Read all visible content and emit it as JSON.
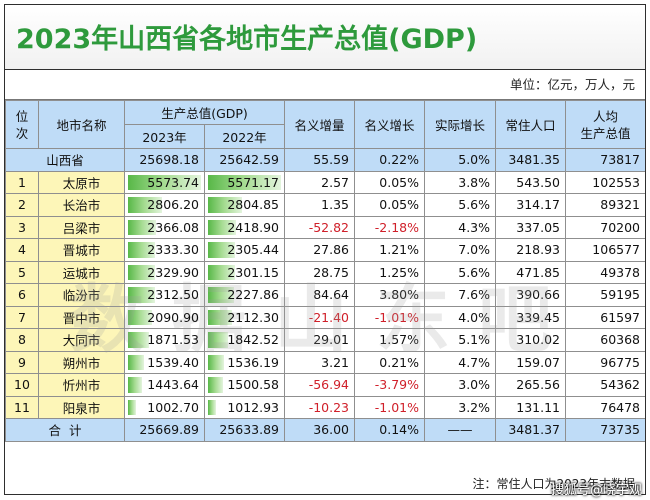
{
  "title": "2023年山西省各地市生产总值(GDP)",
  "unit": "单位：亿元，万人，元",
  "headers": {
    "rank": "位次",
    "city": "地市名称",
    "gdp_group": "生产总值(GDP)",
    "y2023": "2023年",
    "y2022": "2022年",
    "nominal_increase": "名义增量",
    "nominal_growth": "名义增长",
    "real_growth": "实际增长",
    "population": "常住人口",
    "per_capita": "人均\n生产总值"
  },
  "province": {
    "name": "山西省",
    "gdp2023": "25698.18",
    "gdp2022": "25642.59",
    "increase": "55.59",
    "nominal": "0.22%",
    "real": "5.0%",
    "pop": "3481.35",
    "per_capita": "73817"
  },
  "rows": [
    {
      "rank": "1",
      "city": "太原市",
      "gdp2023": "5573.74",
      "gdp2022": "5571.17",
      "increase": "2.57",
      "nominal": "0.05%",
      "real": "3.8%",
      "pop": "543.50",
      "per_capita": "102553",
      "negative": false,
      "frac23": 1.0,
      "frac22": 1.0
    },
    {
      "rank": "2",
      "city": "长治市",
      "gdp2023": "2806.20",
      "gdp2022": "2804.85",
      "increase": "1.35",
      "nominal": "0.05%",
      "real": "5.6%",
      "pop": "314.17",
      "per_capita": "89321",
      "negative": false,
      "frac23": 0.503,
      "frac22": 0.503
    },
    {
      "rank": "3",
      "city": "吕梁市",
      "gdp2023": "2366.08",
      "gdp2022": "2418.90",
      "increase": "-52.82",
      "nominal": "-2.18%",
      "real": "4.3%",
      "pop": "337.05",
      "per_capita": "70200",
      "negative": true,
      "frac23": 0.425,
      "frac22": 0.434
    },
    {
      "rank": "4",
      "city": "晋城市",
      "gdp2023": "2333.30",
      "gdp2022": "2305.44",
      "increase": "27.86",
      "nominal": "1.21%",
      "real": "7.0%",
      "pop": "218.93",
      "per_capita": "106577",
      "negative": false,
      "frac23": 0.419,
      "frac22": 0.414
    },
    {
      "rank": "5",
      "city": "运城市",
      "gdp2023": "2329.90",
      "gdp2022": "2301.15",
      "increase": "28.75",
      "nominal": "1.25%",
      "real": "5.6%",
      "pop": "471.85",
      "per_capita": "49378",
      "negative": false,
      "frac23": 0.418,
      "frac22": 0.413
    },
    {
      "rank": "6",
      "city": "临汾市",
      "gdp2023": "2312.50",
      "gdp2022": "2227.86",
      "increase": "84.64",
      "nominal": "3.80%",
      "real": "7.6%",
      "pop": "390.66",
      "per_capita": "59195",
      "negative": false,
      "frac23": 0.415,
      "frac22": 0.4
    },
    {
      "rank": "7",
      "city": "晋中市",
      "gdp2023": "2090.90",
      "gdp2022": "2112.30",
      "increase": "-21.40",
      "nominal": "-1.01%",
      "real": "4.0%",
      "pop": "339.45",
      "per_capita": "61597",
      "negative": true,
      "frac23": 0.375,
      "frac22": 0.379
    },
    {
      "rank": "8",
      "city": "大同市",
      "gdp2023": "1871.53",
      "gdp2022": "1842.52",
      "increase": "29.01",
      "nominal": "1.57%",
      "real": "5.1%",
      "pop": "310.02",
      "per_capita": "60368",
      "negative": false,
      "frac23": 0.336,
      "frac22": 0.331
    },
    {
      "rank": "9",
      "city": "朔州市",
      "gdp2023": "1539.40",
      "gdp2022": "1536.19",
      "increase": "3.21",
      "nominal": "0.21%",
      "real": "4.7%",
      "pop": "159.07",
      "per_capita": "96775",
      "negative": false,
      "frac23": 0.276,
      "frac22": 0.276
    },
    {
      "rank": "10",
      "city": "忻州市",
      "gdp2023": "1443.64",
      "gdp2022": "1500.58",
      "increase": "-56.94",
      "nominal": "-3.79%",
      "real": "3.0%",
      "pop": "265.56",
      "per_capita": "54362",
      "negative": true,
      "frac23": 0.259,
      "frac22": 0.269
    },
    {
      "rank": "11",
      "city": "阳泉市",
      "gdp2023": "1002.70",
      "gdp2022": "1012.93",
      "increase": "-10.23",
      "nominal": "-1.01%",
      "real": "3.2%",
      "pop": "131.11",
      "per_capita": "76478",
      "negative": true,
      "frac23": 0.18,
      "frac22": 0.182
    }
  ],
  "total": {
    "label": "合  计",
    "gdp2023": "25669.89",
    "gdp2022": "25633.89",
    "increase": "36.00",
    "nominal": "0.14%",
    "real": "——",
    "pop": "3481.37",
    "per_capita": "73735"
  },
  "note": "注：常住人口为2023年末数据",
  "watermark": "数据山东吧",
  "credit": "搜狐号@晓宇观",
  "colors": {
    "title_green": "#2e9a3c",
    "header_blue": "#bfdcf7",
    "rank_yellow": "#fdf6b8",
    "negative_red": "#d0202a",
    "bar_green": "#58b848"
  }
}
